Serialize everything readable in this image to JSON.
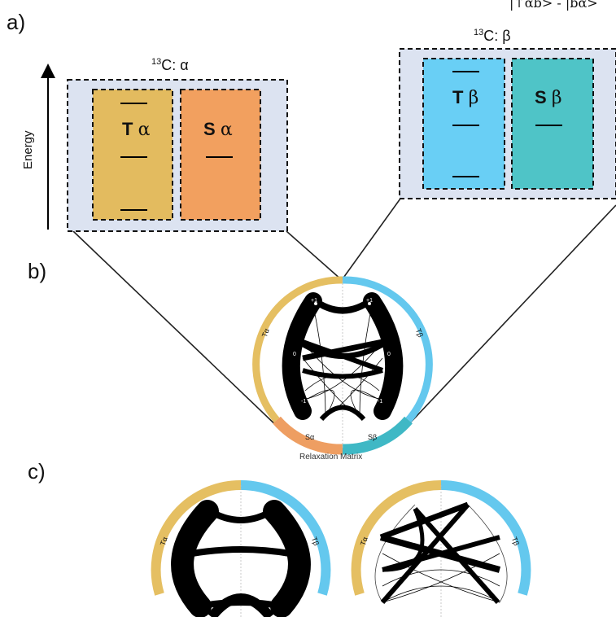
{
  "labels": {
    "a": "a)",
    "b": "b)",
    "c": "c)"
  },
  "energy_axis": {
    "label": "Energy"
  },
  "top_right_text": "|↑αb> - |bα>",
  "alpha_box": {
    "title_sup": "13",
    "title": "C: α",
    "triplet": {
      "letter": "T",
      "greek": "α"
    },
    "singlet": {
      "letter": "S",
      "greek": "α"
    }
  },
  "beta_box": {
    "title_sup": "13",
    "title": "C: β",
    "triplet": {
      "letter": "T",
      "greek": "β"
    },
    "singlet": {
      "letter": "S",
      "greek": "β"
    }
  },
  "relaxation": {
    "caption": "Relaxation Matrix",
    "arc_labels": {
      "t_alpha": "Tα",
      "t_beta": "Tβ",
      "s_alpha": "Sα",
      "s_beta": "Sβ"
    },
    "node_labels": {
      "plus": "+1",
      "zero": "0",
      "minus": "-1"
    }
  },
  "colors": {
    "box_bg": "#dce3f1",
    "t_alpha": "#e3bb5f",
    "s_alpha": "#f2a05f",
    "t_beta": "#69cff5",
    "s_beta": "#4fc4c7",
    "ring_gold": "#e5bf62",
    "ring_blue": "#64c8ee",
    "ring_orange": "#ee9e62",
    "ring_teal": "#3fb8c5"
  }
}
